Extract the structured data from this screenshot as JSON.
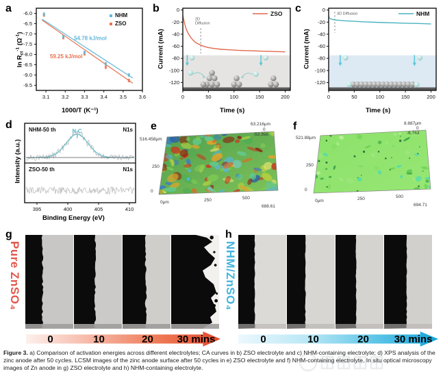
{
  "panels": {
    "a": "a",
    "b": "b",
    "c": "c",
    "d": "d",
    "e": "e",
    "f": "f",
    "g": "g",
    "h": "h"
  },
  "colors": {
    "zso": "#E8714E",
    "nhm": "#62B7D8",
    "b_curve": "#E0694A",
    "c_curve": "#4AB3BF",
    "peak": "#6CC0CE",
    "g_label": "#E2574B",
    "h_label": "#45B4DC",
    "g_arrow_end": "#E5492C",
    "h_arrow_end": "#12A4D9"
  },
  "axis": {
    "a": {
      "xlabel": "1000/T (K⁻¹)",
      "ylabel_pre": "ln R",
      "ylabel_sub": "ct",
      "ylabel_sup": "-1",
      "ylabel_mid": " (Ω",
      "ylabel_sup2": "-1",
      "ylabel_post": ")"
    },
    "b": {
      "xlabel": "Time (s)",
      "ylabel": "Current (mA)"
    },
    "c": {
      "xlabel": "Time (s)",
      "ylabel": "Current (mA)"
    },
    "d": {
      "xlabel": "Binding Energy (eV)",
      "ylabel": "Intensity (a.u.)"
    }
  },
  "chart_data": [
    {
      "id": "a",
      "type": "scatter",
      "xlabel": "1000/T (K⁻¹)",
      "ylabel": "ln Rct⁻¹ (Ω⁻¹)",
      "xlim": [
        3.05,
        3.6
      ],
      "ylim": [
        -9.75,
        -5.75
      ],
      "xticks": [
        3.1,
        3.2,
        3.3,
        3.4,
        3.5,
        3.6
      ],
      "yticks": [
        -6.0,
        -6.5,
        -7.0,
        -7.5,
        -8.0,
        -8.5,
        -9.0,
        -9.5
      ],
      "legend_position": "top-right",
      "series": [
        {
          "name": "ZSO",
          "color": "#E8714E",
          "points": [
            [
              3.09,
              -6.08
            ],
            [
              3.19,
              -7.18
            ],
            [
              3.3,
              -7.97
            ],
            [
              3.41,
              -8.62
            ],
            [
              3.53,
              -9.27
            ]
          ],
          "fit": [
            [
              3.08,
              -6.33
            ],
            [
              3.55,
              -9.4
            ]
          ],
          "annotation": {
            "text": "59.25 kJ/mol",
            "x": 3.205,
            "y": -8.18
          }
        },
        {
          "name": "NHM",
          "color": "#62B7D8",
          "points": [
            [
              3.09,
              -6.04
            ],
            [
              3.19,
              -7.13
            ],
            [
              3.3,
              -7.9
            ],
            [
              3.41,
              -8.45
            ],
            [
              3.53,
              -9.0
            ]
          ],
          "fit": [
            [
              3.08,
              -6.28
            ],
            [
              3.55,
              -9.15
            ]
          ],
          "annotation": {
            "text": "54.78 kJ/mol",
            "x": 3.33,
            "y": -7.3
          }
        }
      ]
    },
    {
      "id": "b",
      "type": "line",
      "legend": "ZSO",
      "color": "#E0694A",
      "xlim": [
        0,
        210
      ],
      "ylim": [
        -133,
        3
      ],
      "xticks": [
        0,
        50,
        100,
        150,
        200
      ],
      "yticks": [
        0,
        -20,
        -40,
        -60,
        -80,
        -100,
        -120
      ],
      "points": [
        [
          0,
          -9
        ],
        [
          2,
          -17
        ],
        [
          4,
          -24
        ],
        [
          6,
          -30
        ],
        [
          9,
          -36
        ],
        [
          12,
          -41
        ],
        [
          16,
          -46
        ],
        [
          20,
          -50
        ],
        [
          25,
          -53.5
        ],
        [
          30,
          -56
        ],
        [
          36,
          -58.5
        ],
        [
          42,
          -60.3
        ],
        [
          50,
          -62
        ],
        [
          60,
          -63.5
        ],
        [
          75,
          -65
        ],
        [
          90,
          -65.8
        ],
        [
          110,
          -66.8
        ],
        [
          130,
          -67.4
        ],
        [
          150,
          -68
        ],
        [
          175,
          -68.6
        ],
        [
          200,
          -69.2
        ]
      ],
      "annotation": {
        "line1": "2D",
        "line2": "Diffusion",
        "x": 24,
        "y": -17
      },
      "dashed_line": {
        "x": 35,
        "y1": -30,
        "y2": -72
      },
      "shade": {
        "from": -75,
        "to": -128,
        "color": "#e6e4e2"
      },
      "schematic": {
        "atoms": [
          [
            47,
            -123
          ],
          [
            57,
            -123
          ],
          [
            67,
            -123
          ],
          [
            52,
            -113
          ],
          [
            62,
            -113
          ],
          [
            57,
            -104
          ],
          [
            40,
            -123
          ],
          [
            100,
            -123
          ],
          [
            110,
            -123
          ],
          [
            105,
            -113
          ],
          [
            172,
            -123
          ],
          [
            182,
            -123
          ],
          [
            177,
            -113
          ]
        ],
        "ions": [
          [
            15,
            -104
          ],
          [
            143,
            -106
          ],
          [
            18,
            -79
          ],
          [
            162,
            -79
          ]
        ],
        "down_arrows": [
          [
            14,
            -79
          ],
          [
            158,
            -79
          ]
        ],
        "curved_arrows": [
          [
            [
              21,
              -106
            ],
            [
              44,
              -112
            ]
          ],
          [
            [
              137,
              -107
            ],
            [
              114,
              -112
            ]
          ]
        ]
      }
    },
    {
      "id": "c",
      "type": "line",
      "legend": "NHM",
      "color": "#4AB3BF",
      "xlim": [
        0,
        210
      ],
      "ylim": [
        -133,
        3
      ],
      "xticks": [
        0,
        50,
        100,
        150,
        200
      ],
      "yticks": [
        0,
        -20,
        -40,
        -60,
        -80,
        -100,
        -120
      ],
      "points": [
        [
          0,
          -10
        ],
        [
          1,
          -12.5
        ],
        [
          3,
          -14.2
        ],
        [
          6,
          -15.3
        ],
        [
          10,
          -16
        ],
        [
          15,
          -16.6
        ],
        [
          20,
          -17
        ],
        [
          30,
          -17.7
        ],
        [
          40,
          -18.2
        ],
        [
          55,
          -18.9
        ],
        [
          70,
          -19.5
        ],
        [
          90,
          -20.2
        ],
        [
          110,
          -20.8
        ],
        [
          130,
          -21.3
        ],
        [
          150,
          -21.8
        ],
        [
          170,
          -22.2
        ],
        [
          185,
          -22.6
        ],
        [
          200,
          -23
        ]
      ],
      "annotation": {
        "line1": "3D Diffusion",
        "line2": "",
        "x": 16,
        "y": -8
      },
      "dashed_line": {
        "x": 12,
        "y1": -3,
        "y2": -38
      },
      "shade": {
        "from": -75,
        "to": -128,
        "color": "#dde9f3"
      },
      "schematic": {
        "row_y": -123,
        "row_from": 48,
        "row_to": 164,
        "row_n": 15,
        "end_ions_x": [
          40,
          172
        ],
        "ions": [
          [
            33,
            -79
          ],
          [
            178,
            -79
          ]
        ],
        "down_arrows": [
          [
            28,
            -79
          ],
          [
            173,
            -79
          ]
        ]
      }
    },
    {
      "id": "d",
      "type": "xps",
      "xlim": [
        393,
        411
      ],
      "xticks": [
        395,
        400,
        405,
        410
      ],
      "panels": [
        {
          "sample": "NHM-50 th",
          "region": "N1s",
          "peak": {
            "label": "N-C",
            "center": 401.5,
            "width_ev": 1.8,
            "color": "#6CC0CE"
          }
        },
        {
          "sample": "ZSO-50 th",
          "region": "N1s",
          "peak": null
        }
      ]
    },
    {
      "id": "e",
      "type": "surface",
      "appearance": "rough multicolor",
      "axis_labels": {
        "y_top": "516.458μm",
        "y_mid": "250",
        "y_bottom": "0",
        "x_left": "0μm",
        "x_mid": "250",
        "x_right": "500",
        "x_end": "688.61",
        "z_top": "63.216μm",
        "z_mid": "0",
        "z_bottom": "-52.398"
      }
    },
    {
      "id": "f",
      "type": "surface",
      "appearance": "smooth green",
      "axis_labels": {
        "y_top": "521.88μm",
        "y_mid": "250",
        "y_bottom": "0",
        "x_left": "0μm",
        "x_mid": "250",
        "x_right": "500",
        "x_end": "694.71",
        "z_top": "8.887μm",
        "z_mid": "0",
        "z_bottom": "-6.763"
      }
    }
  ],
  "panel_g": {
    "side_label": "Pure ZnSO₄",
    "times": [
      "0",
      "10",
      "20",
      "30 mins"
    ]
  },
  "panel_h": {
    "side_label": "NHM/ZnSO₄",
    "times": [
      "0",
      "10",
      "20",
      "30 mins"
    ]
  },
  "caption": {
    "label": "Figure 3.",
    "text": " a) Comparison of activation energies across different electrolytes; CA curves in b) ZSO electrolyte and c) NHM-containing electrolyte; d) XPS analysis of the zinc anode after 50 cycles. LCSM images of the zinc anode surface after 50 cycles in e) ZSO electrolyte and f) NHM-containing electrolyte. In situ optical microscopy images of Zn anode in g) ZSO electrolyte and h) NHM-containing electrolyte."
  }
}
